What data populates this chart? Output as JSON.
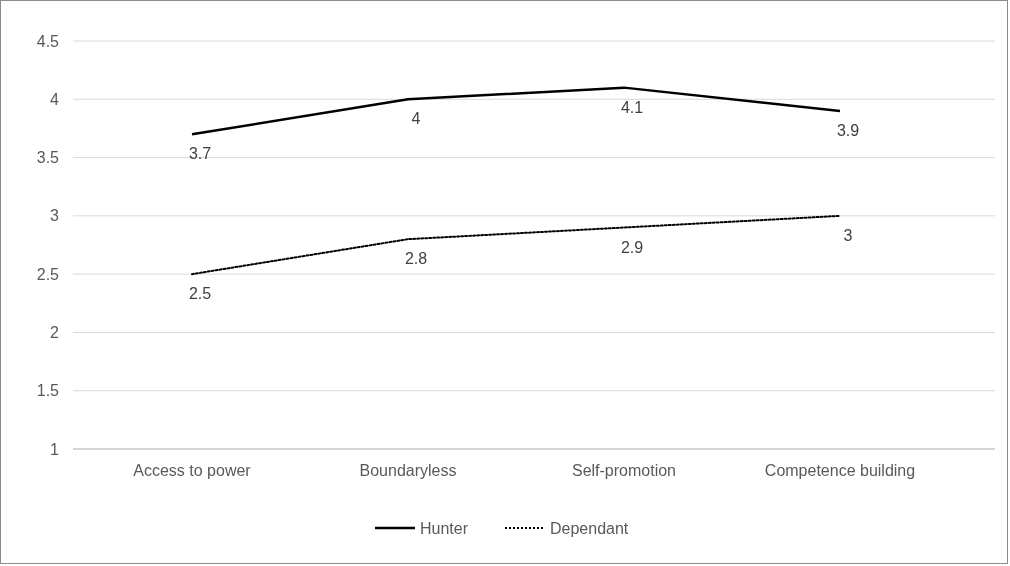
{
  "chart_data": {
    "type": "line",
    "categories": [
      "Access to power",
      "Boundaryless",
      "Self-promotion",
      "Competence building"
    ],
    "series": [
      {
        "name": "Hunter",
        "color": "#000000",
        "values": [
          3.7,
          4,
          4.1,
          3.9
        ],
        "line_style": "solid"
      },
      {
        "name": "Dependant",
        "color": "#000000",
        "values": [
          2.5,
          2.8,
          2.9,
          3
        ],
        "line_style": "dotted"
      }
    ],
    "ylim": [
      1,
      4.5
    ],
    "yticks": [
      1,
      1.5,
      2,
      2.5,
      3,
      3.5,
      4,
      4.5
    ],
    "grid": "y",
    "legend": "bottom",
    "data_labels": true,
    "marker": "none"
  }
}
